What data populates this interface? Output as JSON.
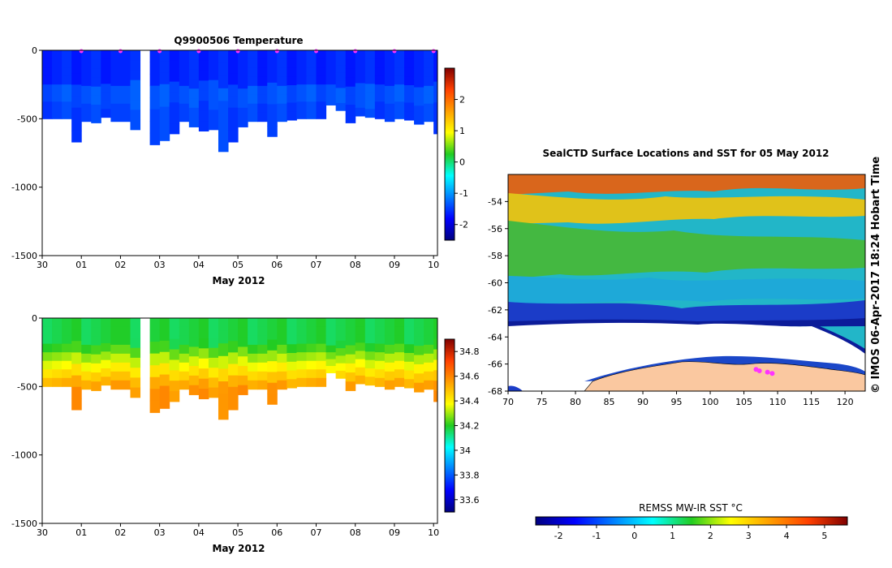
{
  "chart_data": [
    {
      "type": "heatmap",
      "id": "temperature-section",
      "title": "Q9900506  Temperature",
      "xlabel": "May 2012",
      "ylabel": "",
      "x_tick_labels": [
        "30",
        "01",
        "02",
        "03",
        "04",
        "05",
        "06",
        "07",
        "08",
        "09",
        "10"
      ],
      "x_tick_days": [
        0,
        1,
        2,
        3,
        4,
        5,
        6,
        7,
        8,
        9,
        10
      ],
      "xlim_days": [
        0,
        10.1
      ],
      "y_tick_labels": [
        "0",
        "-500",
        "-1000",
        "-1500"
      ],
      "y_ticks": [
        0,
        -500,
        -1000,
        -1500
      ],
      "ylim": [
        -1500,
        0
      ],
      "profile_days": [
        0,
        0.25,
        0.5,
        0.75,
        1,
        1.25,
        1.5,
        1.75,
        2.25,
        2.5,
        2.75,
        3,
        3.25,
        3.5,
        3.75,
        4,
        4.25,
        4.5,
        4.75,
        5,
        5.25,
        5.5,
        5.75,
        6,
        6.25,
        6.5,
        6.75,
        7,
        7.25,
        7.5,
        7.75,
        8,
        8.25,
        8.5,
        8.75,
        9,
        9.25,
        9.5,
        9.75,
        10
      ],
      "profile_max_depth": [
        500,
        500,
        500,
        670,
        520,
        530,
        490,
        520,
        580,
        0,
        690,
        660,
        610,
        520,
        560,
        590,
        580,
        740,
        670,
        560,
        520,
        520,
        630,
        520,
        510,
        500,
        500,
        500,
        400,
        440,
        530,
        480,
        490,
        500,
        520,
        500,
        510,
        540,
        520,
        610
      ],
      "gap_days": [
        2.25,
        2.55
      ],
      "surface_markers_days": [
        1,
        2,
        3,
        4,
        5,
        6,
        7,
        8,
        9,
        10
      ],
      "colorbar": {
        "min": -2.5,
        "max": 3,
        "tick_labels": [
          "2",
          "1",
          "0",
          "-1",
          "-2"
        ],
        "ticks": [
          2,
          1,
          0,
          -1,
          -2
        ]
      },
      "typical_value_surface": -1.7,
      "typical_value_mid": -1.4
    },
    {
      "type": "heatmap",
      "id": "salinity-section",
      "title": "",
      "xlabel": "May 2012",
      "x_tick_labels": [
        "30",
        "01",
        "02",
        "03",
        "04",
        "05",
        "06",
        "07",
        "08",
        "09",
        "10"
      ],
      "x_tick_days": [
        0,
        1,
        2,
        3,
        4,
        5,
        6,
        7,
        8,
        9,
        10
      ],
      "xlim_days": [
        0,
        10.1
      ],
      "y_tick_labels": [
        "0",
        "-500",
        "-1000",
        "-1500"
      ],
      "y_ticks": [
        0,
        -500,
        -1000,
        -1500
      ],
      "ylim": [
        -1500,
        0
      ],
      "colorbar": {
        "min": 33.5,
        "max": 34.9,
        "tick_labels": [
          "34.8",
          "34.6",
          "34.4",
          "34.2",
          "34",
          "33.8",
          "33.6"
        ],
        "ticks": [
          34.8,
          34.6,
          34.4,
          34.2,
          34,
          33.8,
          33.6
        ]
      },
      "typical_value_surface": 34.15,
      "typical_value_bottom": 34.55
    },
    {
      "type": "heatmap",
      "id": "sst-map",
      "title": "SealCTD Surface Locations and SST for 05 May 2012",
      "x_tick_labels": [
        "70",
        "75",
        "80",
        "85",
        "90",
        "95",
        "100",
        "105",
        "110",
        "115",
        "120"
      ],
      "x_ticks": [
        70,
        75,
        80,
        85,
        90,
        95,
        100,
        105,
        110,
        115,
        120
      ],
      "xlim": [
        70,
        123
      ],
      "y_tick_labels": [
        "-54",
        "-56",
        "-58",
        "-60",
        "-62",
        "-64",
        "-66",
        "-68"
      ],
      "y_ticks": [
        -54,
        -56,
        -58,
        -60,
        -62,
        -64,
        -66,
        -68
      ],
      "ylim": [
        -68,
        -52
      ],
      "track_points": [
        [
          106.8,
          -66.4
        ],
        [
          107.3,
          -66.5
        ],
        [
          108.5,
          -66.6
        ],
        [
          109.2,
          -66.7
        ]
      ],
      "colorbar": {
        "label": "REMSS MW-IR SST °C",
        "min": -2.6,
        "max": 5.6,
        "tick_labels": [
          "-2",
          "-1",
          "0",
          "1",
          "2",
          "3",
          "4",
          "5"
        ],
        "ticks": [
          -2,
          -1,
          0,
          1,
          2,
          3,
          4,
          5
        ]
      },
      "credit": "©  IMOS 06-Apr-2017 18:24 Hobart Time"
    }
  ]
}
